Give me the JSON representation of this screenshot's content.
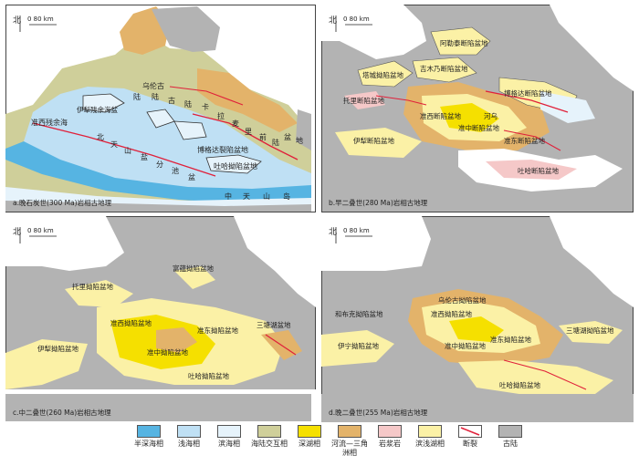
{
  "panels": [
    {
      "caption": "a.晚石炭世(300 Ma)岩相古地理",
      "north": "北",
      "scale": "0    80 km",
      "labels": [
        "准西残余海",
        "北",
        "天",
        "山",
        "盐",
        "分",
        "池",
        "盆",
        "卡",
        "拉",
        "麦",
        "里",
        "前",
        "陆",
        "盆",
        "地",
        "乌伦古",
        "陆",
        "陆",
        "古",
        "陆",
        "伊犁残余海盆",
        "博格达裂陷盆地",
        "吐哈拗陷盆地",
        "中",
        "天",
        "山",
        "岛"
      ]
    },
    {
      "caption": "b.早二叠世(280 Ma)岩相古地理",
      "north": "北",
      "scale": "0    80 km",
      "labels": [
        "阿勒泰断陷盆地",
        "塔城拗陷盆地",
        "吉木乃断陷盆地",
        "托里断陷盆地",
        "准西断陷盆地",
        "准中断陷盆地",
        "准东断陷盆地",
        "伊犁断陷盆地",
        "吐哈断陷盆地",
        "博格达断陷盆地",
        "河乌"
      ]
    },
    {
      "caption": "c.中二叠世(260 Ma)岩相古地理",
      "north": "北",
      "scale": "0    80 km",
      "labels": [
        "富蕴拗陷盆地",
        "托里拗陷盆地",
        "准西拗陷盆地",
        "准东拗陷盆地",
        "准中拗陷盆地",
        "伊犁拗陷盆地",
        "吐哈拗陷盆地",
        "三塘湖盆地"
      ]
    },
    {
      "caption": "d.晚二叠世(255 Ma)岩相古地理",
      "north": "北",
      "scale": "0    80 km",
      "labels": [
        "乌伦古拗陷盆地",
        "准西拗陷盆地",
        "和布克拗陷盆地",
        "准东拗陷盆地",
        "三塘湖拗陷盆地",
        "准中拗陷盆地",
        "伊宁拗陷盆地",
        "吐哈拗陷盆地"
      ]
    }
  ],
  "legend": [
    {
      "label": "半深海相",
      "color": "#56b4e2",
      "kind": "fill"
    },
    {
      "label": "浅海相",
      "color": "#bfe0f4",
      "kind": "fill"
    },
    {
      "label": "滨海相",
      "color": "#e6f3fb",
      "kind": "fill"
    },
    {
      "label": "海陆交互相",
      "color": "#cfcf9a",
      "kind": "fill"
    },
    {
      "label": "深湖相",
      "color": "#f5e000",
      "kind": "fill"
    },
    {
      "label": "河流—三角洲相",
      "color": "#e3b36a",
      "kind": "fill"
    },
    {
      "label": "岩浆岩",
      "color": "#f5c8c8",
      "kind": "fill"
    },
    {
      "label": "滨浅湖相",
      "color": "#fbf1a6",
      "kind": "fill"
    },
    {
      "label": "断裂",
      "color": "#e0203a",
      "kind": "line"
    },
    {
      "label": "古陆",
      "color": "#b3b3b3",
      "kind": "fill"
    }
  ]
}
